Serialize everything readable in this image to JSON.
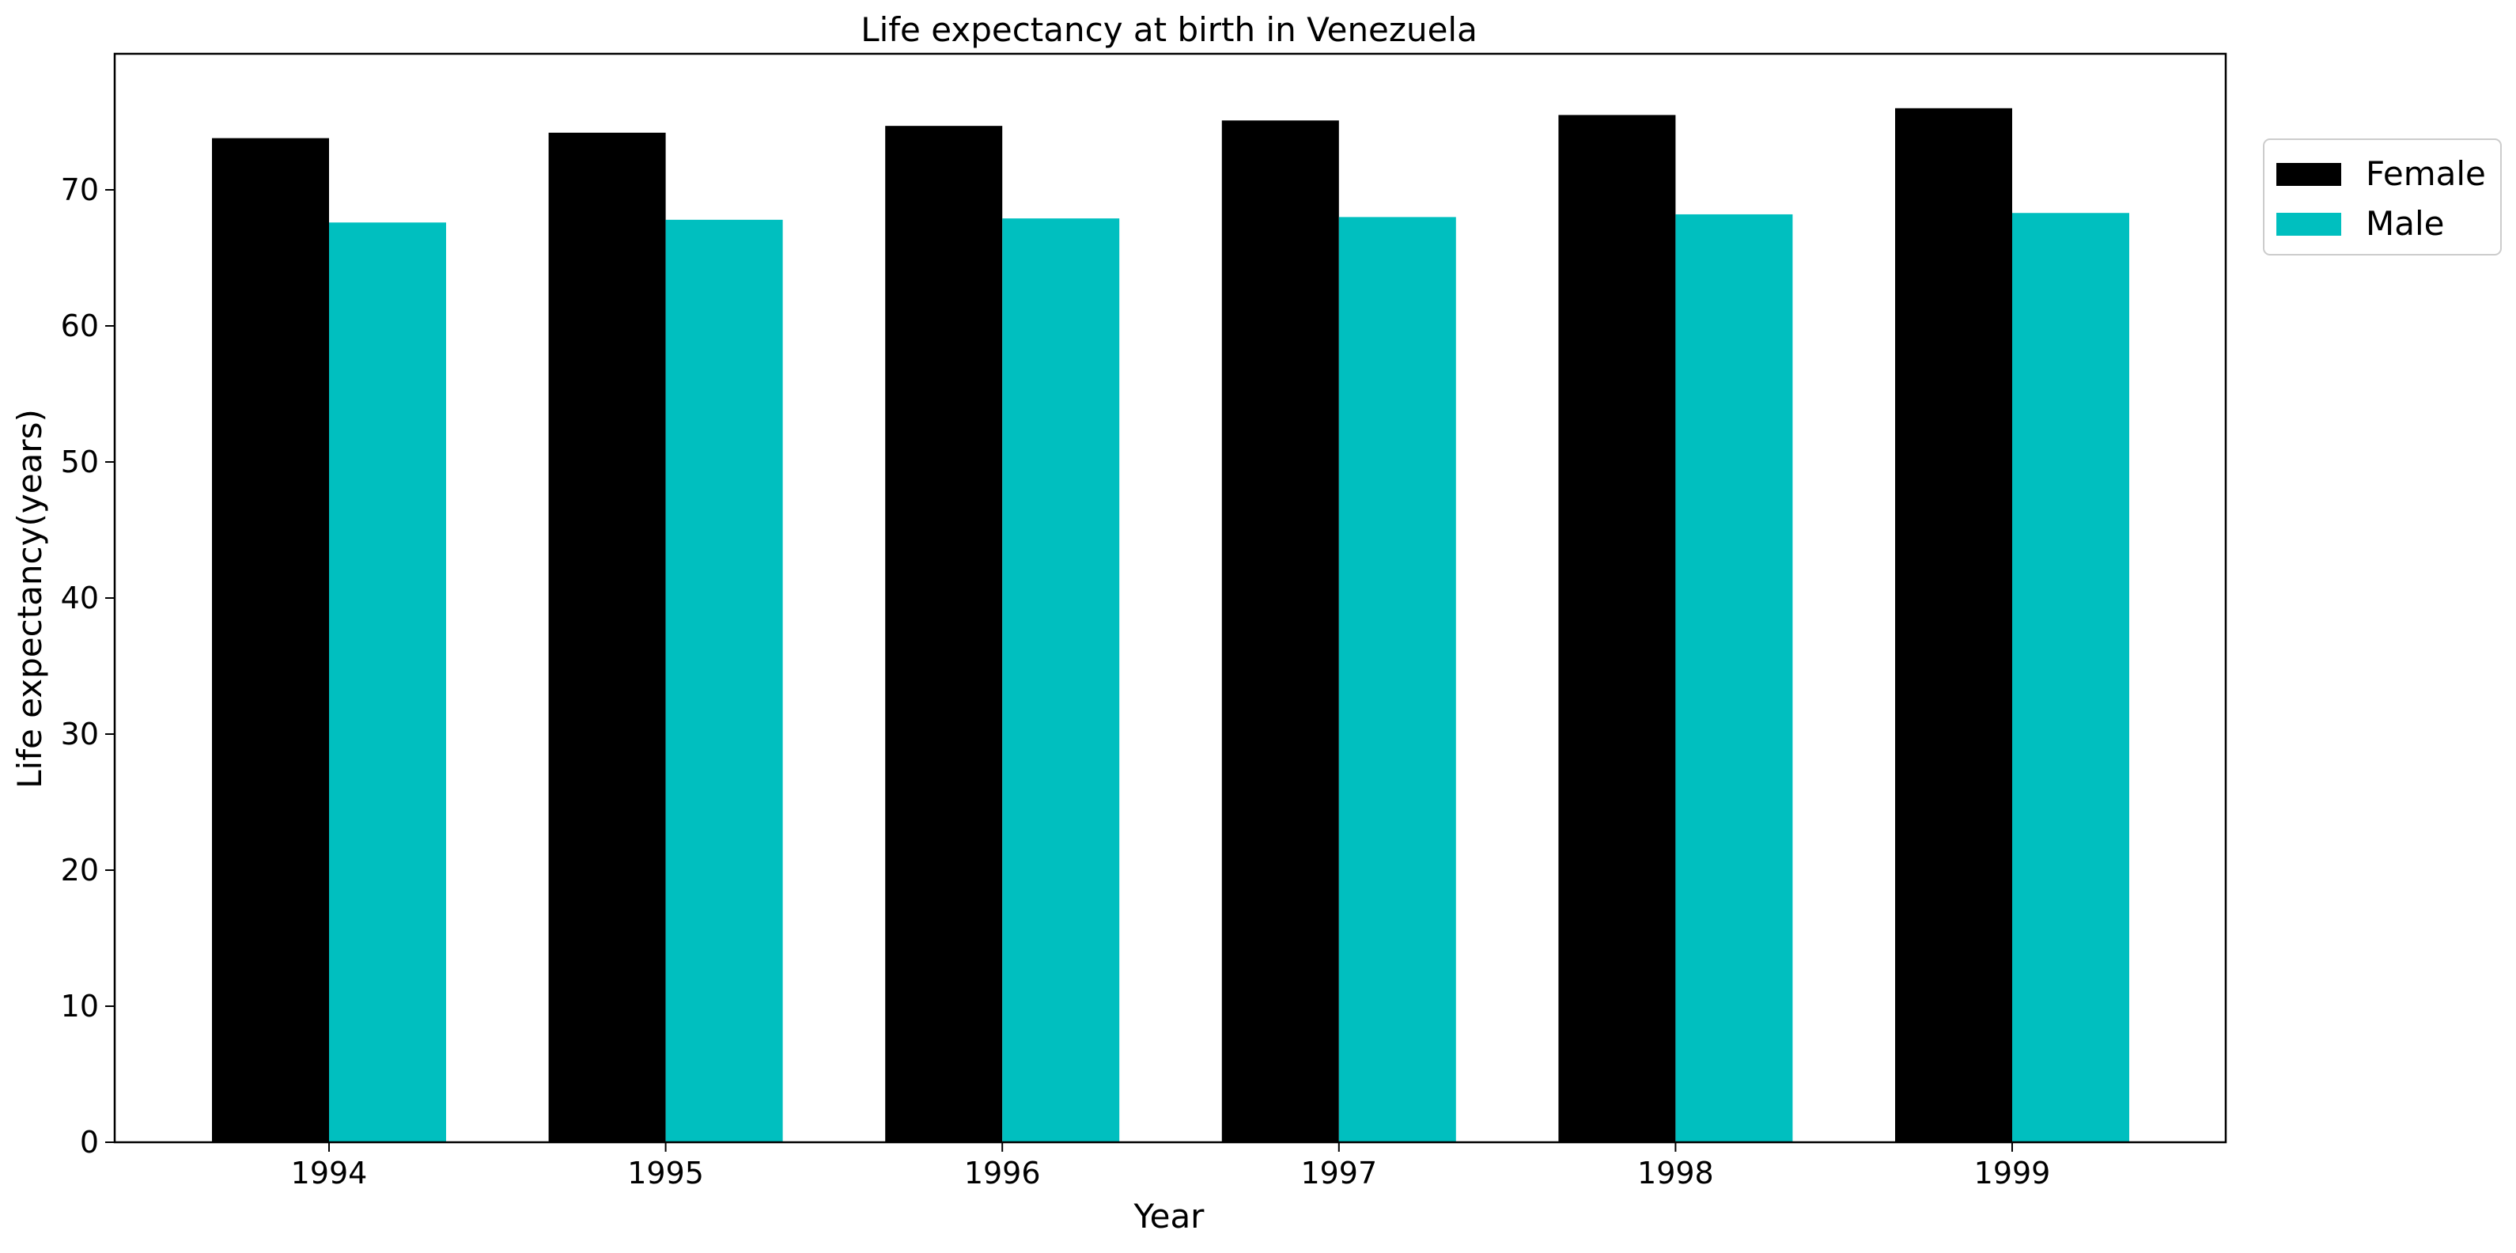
{
  "chart_data": {
    "type": "bar",
    "title": "Life expectancy at birth in Venezuela",
    "xlabel": "Year",
    "ylabel": "Life expectancy(years)",
    "categories": [
      "1994",
      "1995",
      "1996",
      "1997",
      "1998",
      "1999"
    ],
    "series": [
      {
        "name": "Female",
        "color": "#000000",
        "values": [
          73.8,
          74.2,
          74.7,
          75.1,
          75.5,
          76.0
        ]
      },
      {
        "name": "Male",
        "color": "#00bfbf",
        "values": [
          67.6,
          67.8,
          67.9,
          68.0,
          68.2,
          68.3
        ]
      }
    ],
    "ylim": [
      0,
      80
    ],
    "yticks": [
      0,
      10,
      20,
      30,
      40,
      50,
      60,
      70
    ],
    "grid": false,
    "legend_position": "upper-right-outside"
  }
}
